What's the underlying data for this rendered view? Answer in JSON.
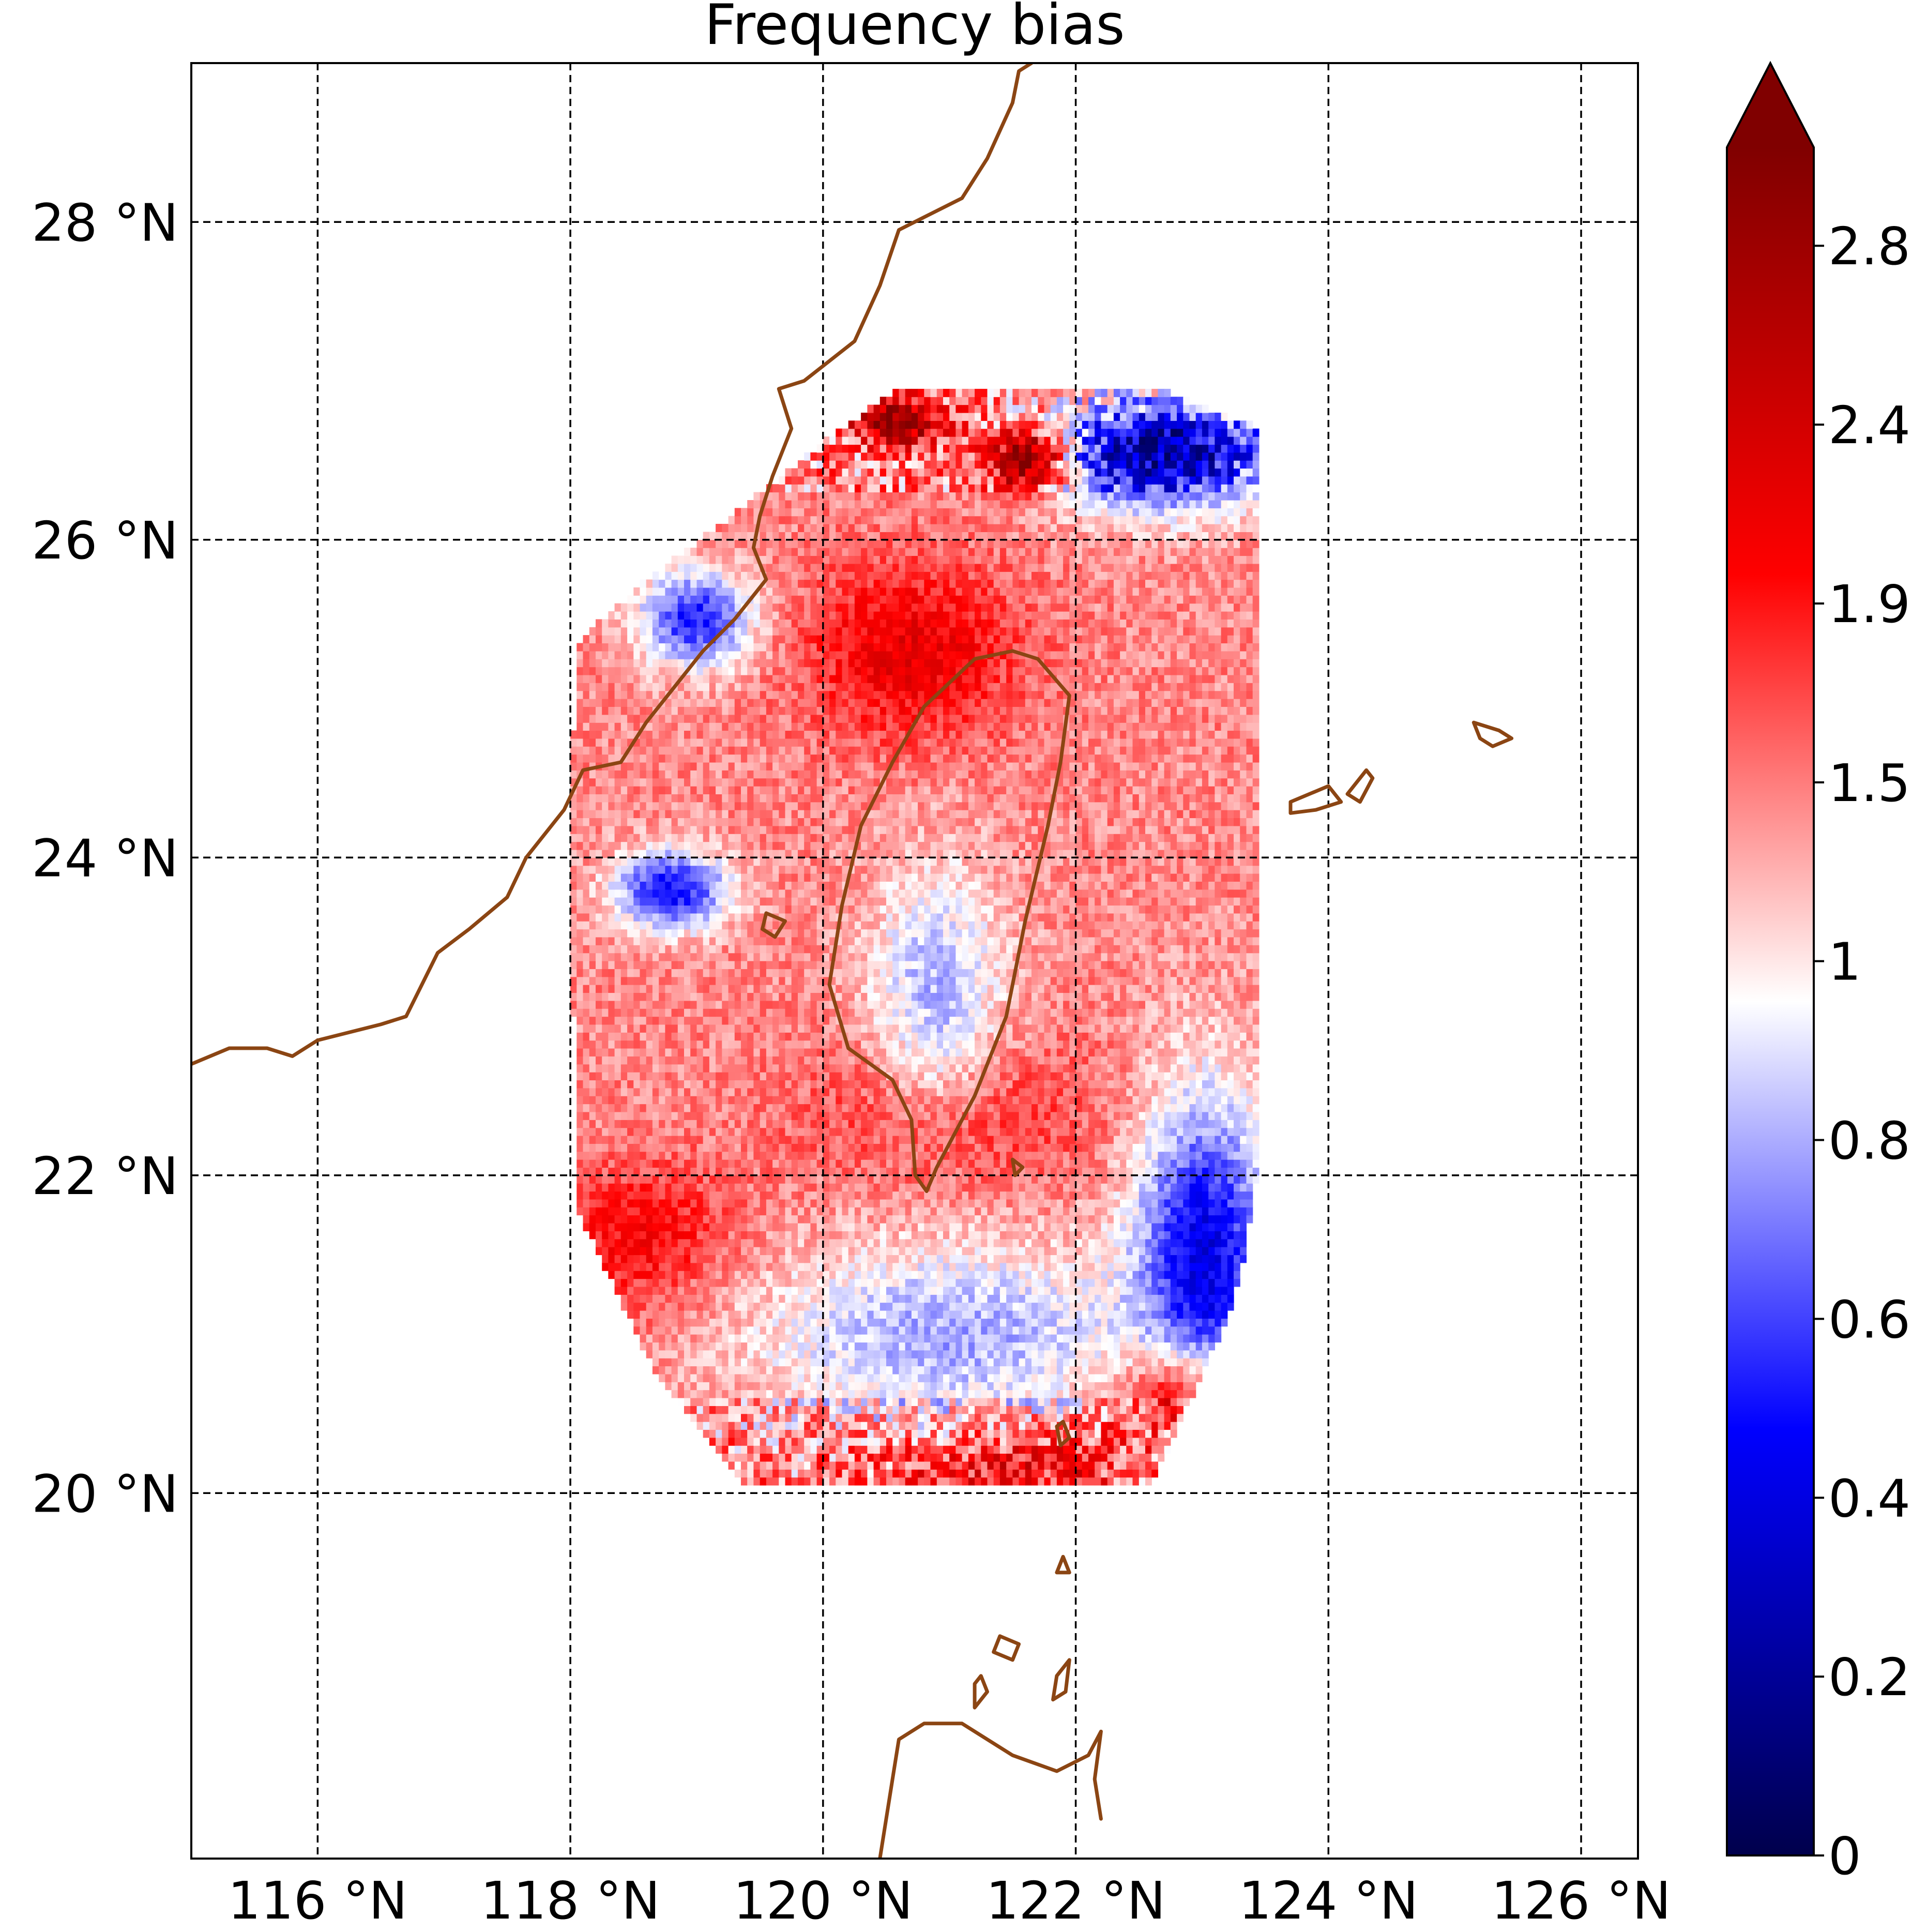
{
  "chart_data": {
    "type": "heatmap",
    "title": "Frequency bias",
    "xlabel": "",
    "ylabel": "",
    "xlim": [
      115.0,
      126.45
    ],
    "ylim": [
      17.7,
      29.0
    ],
    "x_ticks": [
      116,
      118,
      120,
      122,
      124,
      126
    ],
    "x_tick_labels": [
      "116 °N",
      "118 °N",
      "120 °N",
      "122 °N",
      "124 °N",
      "126 °N"
    ],
    "y_ticks": [
      20,
      22,
      24,
      26,
      28
    ],
    "y_tick_labels": [
      "20 °N",
      "22 °N",
      "24 °N",
      "26 °N",
      "28 °N"
    ],
    "grid": true,
    "colorbar": {
      "colormap": "seismic",
      "extend": "max",
      "range": [
        0,
        3.0
      ],
      "ticks": [
        0,
        0.2,
        0.4,
        0.6,
        0.8,
        1,
        1.5,
        1.9,
        2.4,
        2.8
      ],
      "tick_labels": [
        "0",
        "0.2",
        "0.4",
        "0.6",
        "0.8",
        "1",
        "1.5",
        "1.9",
        "2.4",
        "2.8"
      ]
    },
    "coastline_color": "#8B4513",
    "data_domain_outline_lonlat": [
      [
        118.05,
        25.35
      ],
      [
        118.6,
        25.75
      ],
      [
        119.2,
        26.1
      ],
      [
        120.05,
        26.65
      ],
      [
        120.6,
        26.95
      ],
      [
        122.7,
        26.95
      ],
      [
        123.45,
        26.7
      ],
      [
        123.45,
        22.1
      ],
      [
        123.35,
        21.55
      ],
      [
        123.2,
        21.1
      ],
      [
        122.6,
        20.05
      ],
      [
        119.35,
        20.05
      ],
      [
        118.7,
        20.7
      ],
      [
        118.05,
        21.8
      ],
      [
        118.0,
        24.2
      ]
    ],
    "field_regions": [
      {
        "description_lonlat": [
          122.7,
          26.55
        ],
        "radius_deg": [
          0.9,
          0.35
        ],
        "value": 0.35
      },
      {
        "description_lonlat": [
          123.0,
          21.4
        ],
        "radius_deg": [
          0.55,
          1.1
        ],
        "value": 0.55
      },
      {
        "description_lonlat": [
          118.8,
          23.8
        ],
        "radius_deg": [
          0.45,
          0.25
        ],
        "value": 0.75
      },
      {
        "description_lonlat": [
          119.0,
          25.5
        ],
        "radius_deg": [
          0.45,
          0.3
        ],
        "value": 0.8
      },
      {
        "description_lonlat": [
          120.6,
          26.75
        ],
        "radius_deg": [
          0.35,
          0.15
        ],
        "value": 3.0
      },
      {
        "description_lonlat": [
          121.6,
          26.5
        ],
        "radius_deg": [
          0.3,
          0.2
        ],
        "value": 2.9
      },
      {
        "description_lonlat": [
          120.7,
          25.3
        ],
        "radius_deg": [
          0.8,
          0.55
        ],
        "value": 2.4
      },
      {
        "description_lonlat": [
          121.0,
          22.4
        ],
        "radius_deg": [
          1.1,
          0.5
        ],
        "value": 2.2
      },
      {
        "description_lonlat": [
          118.6,
          21.6
        ],
        "radius_deg": [
          0.7,
          0.45
        ],
        "value": 2.3
      },
      {
        "description_lonlat": [
          121.5,
          20.2
        ],
        "radius_deg": [
          1.1,
          0.25
        ],
        "value": 2.4
      },
      {
        "description_lonlat": [
          122.7,
          20.6
        ],
        "radius_deg": [
          0.55,
          0.3
        ],
        "value": 2.4
      },
      {
        "description_lonlat": [
          120.9,
          23.2
        ],
        "radius_deg": [
          0.55,
          0.8
        ],
        "value": 1.3
      },
      {
        "description_lonlat": [
          121.0,
          21.0
        ],
        "radius_deg": [
          1.6,
          0.6
        ],
        "value": 1.25
      }
    ],
    "background_value": 1.85,
    "coastlines_lonlat": [
      {
        "name": "Taiwan",
        "closed": true,
        "points": [
          [
            121.5,
            25.3
          ],
          [
            121.7,
            25.25
          ],
          [
            121.95,
            25.02
          ],
          [
            121.88,
            24.6
          ],
          [
            121.78,
            24.2
          ],
          [
            121.6,
            23.6
          ],
          [
            121.45,
            23.0
          ],
          [
            121.2,
            22.5
          ],
          [
            120.9,
            22.05
          ],
          [
            120.82,
            21.9
          ],
          [
            120.73,
            22.0
          ],
          [
            120.7,
            22.35
          ],
          [
            120.55,
            22.6
          ],
          [
            120.2,
            22.8
          ],
          [
            120.05,
            23.2
          ],
          [
            120.15,
            23.7
          ],
          [
            120.3,
            24.2
          ],
          [
            120.55,
            24.6
          ],
          [
            120.8,
            24.95
          ],
          [
            121.0,
            25.1
          ],
          [
            121.2,
            25.25
          ]
        ]
      },
      {
        "name": "China mainland coast",
        "closed": false,
        "points": [
          [
            115.0,
            22.7
          ],
          [
            115.3,
            22.8
          ],
          [
            115.6,
            22.8
          ],
          [
            115.8,
            22.75
          ],
          [
            116.0,
            22.85
          ],
          [
            116.5,
            22.95
          ],
          [
            116.7,
            23.0
          ],
          [
            116.95,
            23.4
          ],
          [
            117.2,
            23.55
          ],
          [
            117.5,
            23.75
          ],
          [
            117.65,
            24.0
          ],
          [
            117.95,
            24.3
          ],
          [
            118.1,
            24.55
          ],
          [
            118.4,
            24.6
          ],
          [
            118.6,
            24.85
          ],
          [
            118.8,
            25.05
          ],
          [
            119.05,
            25.3
          ],
          [
            119.3,
            25.5
          ],
          [
            119.55,
            25.75
          ],
          [
            119.45,
            25.95
          ],
          [
            119.5,
            26.15
          ],
          [
            119.6,
            26.4
          ],
          [
            119.75,
            26.7
          ],
          [
            119.65,
            26.95
          ],
          [
            119.85,
            27.0
          ],
          [
            120.25,
            27.25
          ],
          [
            120.45,
            27.6
          ],
          [
            120.6,
            27.95
          ],
          [
            120.85,
            28.05
          ],
          [
            121.1,
            28.15
          ],
          [
            121.3,
            28.4
          ],
          [
            121.5,
            28.75
          ],
          [
            121.55,
            28.95
          ],
          [
            121.65,
            29.0
          ]
        ]
      },
      {
        "name": "Ryukyu 1",
        "closed": true,
        "points": [
          [
            123.7,
            24.35
          ],
          [
            124.0,
            24.45
          ],
          [
            124.1,
            24.35
          ],
          [
            123.9,
            24.3
          ],
          [
            123.7,
            24.28
          ]
        ]
      },
      {
        "name": "Ryukyu 2",
        "closed": true,
        "points": [
          [
            124.15,
            24.4
          ],
          [
            124.3,
            24.55
          ],
          [
            124.35,
            24.5
          ],
          [
            124.25,
            24.35
          ]
        ]
      },
      {
        "name": "Miyako",
        "closed": true,
        "points": [
          [
            125.15,
            24.85
          ],
          [
            125.35,
            24.8
          ],
          [
            125.45,
            24.75
          ],
          [
            125.3,
            24.7
          ],
          [
            125.2,
            24.75
          ]
        ]
      },
      {
        "name": "Luzon north",
        "closed": false,
        "points": [
          [
            120.45,
            17.7
          ],
          [
            120.55,
            18.2
          ],
          [
            120.6,
            18.45
          ],
          [
            120.8,
            18.55
          ],
          [
            121.1,
            18.55
          ],
          [
            121.5,
            18.35
          ],
          [
            121.85,
            18.25
          ],
          [
            122.1,
            18.35
          ],
          [
            122.2,
            18.5
          ],
          [
            122.15,
            18.2
          ],
          [
            122.2,
            17.95
          ]
        ]
      },
      {
        "name": "Babuyan 1",
        "closed": true,
        "points": [
          [
            121.4,
            19.1
          ],
          [
            121.55,
            19.05
          ],
          [
            121.5,
            18.95
          ],
          [
            121.35,
            19.0
          ]
        ]
      },
      {
        "name": "Babuyan 2",
        "closed": true,
        "points": [
          [
            121.85,
            18.85
          ],
          [
            121.95,
            18.95
          ],
          [
            121.92,
            18.75
          ],
          [
            121.82,
            18.7
          ]
        ]
      },
      {
        "name": "Babuyan 3",
        "closed": true,
        "points": [
          [
            121.25,
            18.85
          ],
          [
            121.3,
            18.75
          ],
          [
            121.2,
            18.65
          ],
          [
            121.2,
            18.8
          ]
        ]
      },
      {
        "name": "Batanes 1",
        "closed": true,
        "points": [
          [
            121.9,
            20.45
          ],
          [
            121.95,
            20.35
          ],
          [
            121.88,
            20.3
          ],
          [
            121.85,
            20.42
          ]
        ]
      },
      {
        "name": "Batanes 2",
        "closed": true,
        "points": [
          [
            121.9,
            19.6
          ],
          [
            121.95,
            19.5
          ],
          [
            121.85,
            19.5
          ]
        ]
      },
      {
        "name": "Lanyu",
        "closed": true,
        "points": [
          [
            121.5,
            22.1
          ],
          [
            121.58,
            22.05
          ],
          [
            121.52,
            22.0
          ]
        ]
      },
      {
        "name": "Penghu",
        "closed": true,
        "points": [
          [
            119.55,
            23.65
          ],
          [
            119.7,
            23.6
          ],
          [
            119.62,
            23.5
          ],
          [
            119.52,
            23.55
          ]
        ]
      }
    ]
  }
}
